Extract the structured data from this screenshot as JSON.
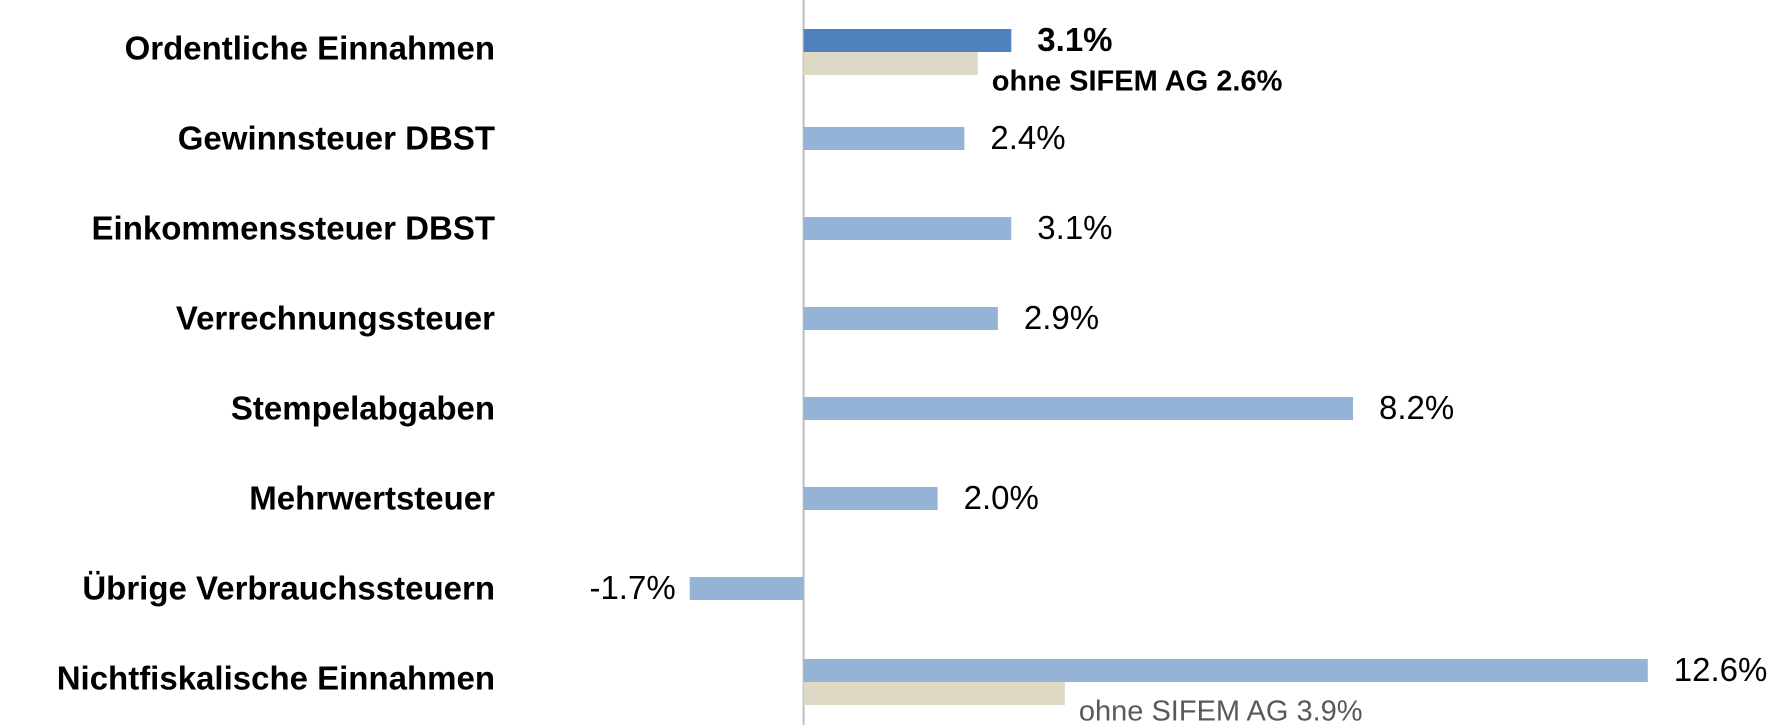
{
  "chart_data": {
    "type": "hbar",
    "categories": [
      "Ordentliche Einnahmen",
      "Gewinnsteuer DBST",
      "Einkommenssteuer DBST",
      "Verrechnungssteuer",
      "Stempelabgaben",
      "Mehrwertsteuer",
      "Übrige Verbrauchssteuern",
      "Nichtfiskalische Einnahmen"
    ],
    "series": [
      {
        "color": "#95b3d7",
        "highlight_color": "#4f81bd",
        "values": [
          3.1,
          2.4,
          3.1,
          2.9,
          8.2,
          2.0,
          -1.7,
          12.6
        ],
        "value_labels": [
          "3.1%",
          "2.4%",
          "3.1%",
          "2.9%",
          "8.2%",
          "2.0%",
          "-1.7%",
          "12.6%"
        ]
      },
      {
        "color": "#ddd9c4",
        "values": [
          2.6,
          null,
          null,
          null,
          null,
          null,
          null,
          3.9
        ],
        "value_labels": [
          "ohne SIFEM AG 2.6%",
          null,
          null,
          null,
          null,
          null,
          null,
          "ohne SIFEM AG 3.9%"
        ]
      }
    ],
    "xlim": [
      -5,
      14
    ]
  }
}
